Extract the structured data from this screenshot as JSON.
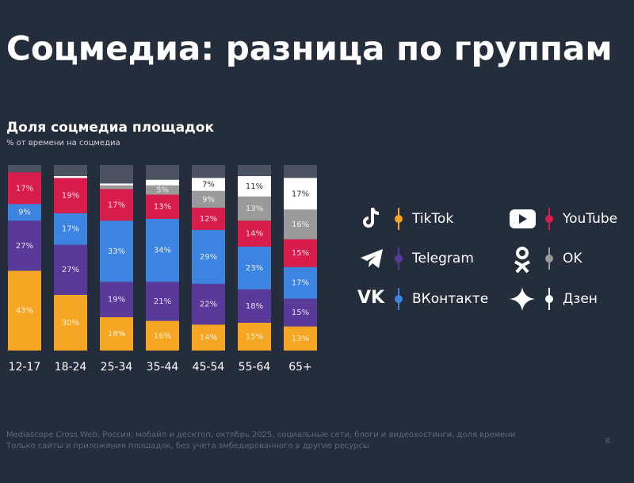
{
  "chart_data": {
    "type": "stacked-bar",
    "slide_title": "Соцмедиа: разница по группам",
    "title": "Доля соцмедиа площадок",
    "subtitle": "% от времени на соцмедиа",
    "categories": [
      "12-17",
      "18-24",
      "25-34",
      "35-44",
      "45-54",
      "55-64",
      "65+"
    ],
    "ylim": [
      0,
      100
    ],
    "series": [
      {
        "name": "TikTok",
        "color": "#f5a623",
        "values": [
          43,
          30,
          18,
          16,
          14,
          15,
          13
        ],
        "value_labels": [
          "43%",
          "30%",
          "18%",
          "16%",
          "14%",
          "15%",
          "13%"
        ]
      },
      {
        "name": "Telegram",
        "color": "#5a3a98",
        "values": [
          27,
          27,
          19,
          21,
          22,
          18,
          15
        ],
        "value_labels": [
          "27%",
          "27%",
          "19%",
          "21%",
          "22%",
          "18%",
          "15%"
        ]
      },
      {
        "name": "ВКонтакте",
        "color": "#3d84e0",
        "values": [
          9,
          17,
          33,
          34,
          29,
          23,
          17
        ],
        "value_labels": [
          "9%",
          "17%",
          "33%",
          "34%",
          "29%",
          "23%",
          "17%"
        ]
      },
      {
        "name": "YouTube",
        "color": "#d81c4c",
        "values": [
          17,
          19,
          17,
          13,
          12,
          14,
          15
        ],
        "value_labels": [
          "17%",
          "19%",
          "17%",
          "13%",
          "12%",
          "14%",
          "15%"
        ]
      },
      {
        "name": "OK",
        "color": "#9a9a9a",
        "values": [
          null,
          null,
          2,
          5,
          9,
          13,
          16
        ],
        "value_labels": [
          null,
          null,
          null,
          "5%",
          "9%",
          "13%",
          "16%"
        ]
      },
      {
        "name": "Дзен",
        "color": "#ffffff",
        "values": [
          null,
          1,
          1,
          3,
          7,
          11,
          17
        ],
        "value_labels": [
          null,
          null,
          null,
          null,
          "7%",
          "11%",
          "17%"
        ]
      }
    ],
    "footnote": [
      "Mediascope Cross Web. Россия, мобайл и десктоп, октябрь 2025, социальные сети, блоги и видеохостинги, доля времени",
      "Только сайты и приложения площадок, без учета эмбедированного в другие ресурсы"
    ],
    "page_number": "8"
  }
}
